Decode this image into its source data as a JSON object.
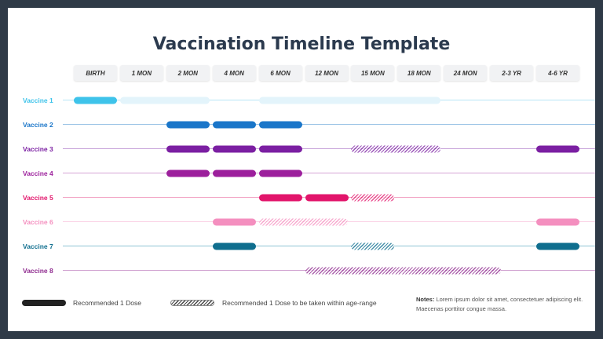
{
  "title": "Vaccination Timeline Template",
  "columns": [
    "BIRTH",
    "1 MON",
    "2 MON",
    "4 MON",
    "6 MON",
    "12 MON",
    "15 MON",
    "18 MON",
    "24 MON",
    "2-3 YR",
    "4-6 YR"
  ],
  "rows": [
    {
      "label": "Vaccine 1",
      "color": "#3ec3ea",
      "line": "#b7e6f6",
      "bars": [
        {
          "from": 0,
          "to": 0,
          "type": "solid"
        },
        {
          "from": 1,
          "to": 2,
          "type": "light"
        },
        {
          "from": 4,
          "to": 7,
          "type": "light"
        }
      ]
    },
    {
      "label": "Vaccine 2",
      "color": "#1a76c9",
      "line": "#9cc4e6",
      "bars": [
        {
          "from": 2,
          "to": 2,
          "type": "solid"
        },
        {
          "from": 3,
          "to": 3,
          "type": "solid"
        },
        {
          "from": 4,
          "to": 4,
          "type": "solid"
        }
      ]
    },
    {
      "label": "Vaccine 3",
      "color": "#7b1fa2",
      "line": "#c7a3da",
      "bars": [
        {
          "from": 2,
          "to": 2,
          "type": "solid"
        },
        {
          "from": 3,
          "to": 3,
          "type": "solid"
        },
        {
          "from": 4,
          "to": 4,
          "type": "solid"
        },
        {
          "from": 6,
          "to": 7,
          "type": "hatch"
        },
        {
          "from": 10,
          "to": 10,
          "type": "solid"
        }
      ]
    },
    {
      "label": "Vaccine 4",
      "color": "#9c1f9c",
      "line": "#d6a3d6",
      "bars": [
        {
          "from": 2,
          "to": 2,
          "type": "solid"
        },
        {
          "from": 3,
          "to": 3,
          "type": "solid"
        },
        {
          "from": 4,
          "to": 4,
          "type": "solid"
        }
      ]
    },
    {
      "label": "Vaccine 5",
      "color": "#e2156b",
      "line": "#f2a3c4",
      "bars": [
        {
          "from": 4,
          "to": 4,
          "type": "solid"
        },
        {
          "from": 5,
          "to": 5,
          "type": "solid"
        },
        {
          "from": 6,
          "to": 6,
          "type": "hatch"
        }
      ]
    },
    {
      "label": "Vaccine 6",
      "color": "#f48fbf",
      "line": "#fbd2e5",
      "bars": [
        {
          "from": 3,
          "to": 3,
          "type": "solid"
        },
        {
          "from": 4,
          "to": 5,
          "type": "hatch"
        },
        {
          "from": 10,
          "to": 10,
          "type": "solid"
        }
      ]
    },
    {
      "label": "Vaccine 7",
      "color": "#0f6e8e",
      "line": "#8fc3d4",
      "bars": [
        {
          "from": 3,
          "to": 3,
          "type": "solid"
        },
        {
          "from": 6,
          "to": 6,
          "type": "hatch"
        },
        {
          "from": 10,
          "to": 10,
          "type": "solid"
        }
      ]
    },
    {
      "label": "Vaccine 8",
      "color": "#8e2a8e",
      "line": "#cfa0cf",
      "bars": [
        {
          "from": 5,
          "to": 8.3,
          "type": "hatch"
        }
      ]
    }
  ],
  "legend": {
    "solid_label": "Recommended 1 Dose",
    "hatch_label": "Recommended 1 Dose to be taken within age-range"
  },
  "notes": {
    "label": "Notes:",
    "text": "Lorem ipsum dolor sit amet, consectetuer adipiscing elit. Maecenas porttitor congue massa."
  }
}
